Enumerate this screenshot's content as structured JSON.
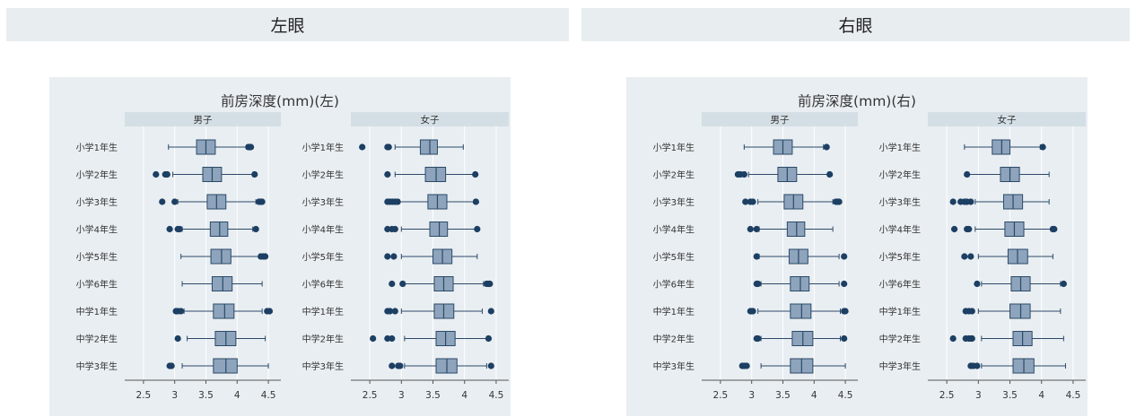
{
  "headers": {
    "left": "左眼",
    "right": "右眼"
  },
  "colors": {
    "plot_bg": "#e9eef2",
    "strip_bg": "#d4dfe5",
    "box_fill": "#8da4bc",
    "box_stroke": "#2c4a68",
    "outlier": "#1c3f63",
    "grid": "#ffffff",
    "text": "#333333"
  },
  "chart_data": [
    {
      "type": "box",
      "orientation": "horizontal",
      "title": "前房深度(mm)(左)",
      "categories": [
        "小学1年生",
        "小学2年生",
        "小学3年生",
        "小学4年生",
        "小学5年生",
        "小学6年生",
        "中学1年生",
        "中学2年生",
        "中学3年生"
      ],
      "xlim": [
        2.2,
        4.7
      ],
      "xticks": [
        2.5,
        3,
        3.5,
        4,
        4.5
      ],
      "xtick_labels": [
        "2.5",
        "3",
        "3.5",
        "4",
        "4.5"
      ],
      "grid": true,
      "panels": [
        {
          "name": "男子",
          "boxes": [
            {
              "whisker_low": 2.9,
              "q1": 3.35,
              "median": 3.5,
              "q3": 3.65,
              "whisker_high": 4.15,
              "outliers": [
                4.18,
                4.2,
                4.22
              ]
            },
            {
              "whisker_low": 2.97,
              "q1": 3.45,
              "median": 3.6,
              "q3": 3.75,
              "whisker_high": 4.25,
              "outliers": [
                2.7,
                2.85,
                2.88,
                4.28
              ]
            },
            {
              "whisker_low": 3.05,
              "q1": 3.52,
              "median": 3.67,
              "q3": 3.82,
              "whisker_high": 4.3,
              "outliers": [
                2.8,
                3.0,
                4.35,
                4.38,
                4.4
              ]
            },
            {
              "whisker_low": 3.12,
              "q1": 3.57,
              "median": 3.72,
              "q3": 3.85,
              "whisker_high": 4.25,
              "outliers": [
                2.92,
                3.05,
                3.08,
                4.3
              ]
            },
            {
              "whisker_low": 3.1,
              "q1": 3.58,
              "median": 3.75,
              "q3": 3.9,
              "whisker_high": 4.35,
              "outliers": [
                4.38,
                4.42,
                4.45
              ]
            },
            {
              "whisker_low": 3.12,
              "q1": 3.6,
              "median": 3.77,
              "q3": 3.92,
              "whisker_high": 4.4,
              "outliers": []
            },
            {
              "whisker_low": 3.15,
              "q1": 3.62,
              "median": 3.8,
              "q3": 3.95,
              "whisker_high": 4.4,
              "outliers": [
                3.02,
                3.05,
                3.1,
                4.48,
                4.52
              ]
            },
            {
              "whisker_low": 3.2,
              "q1": 3.65,
              "median": 3.82,
              "q3": 3.98,
              "whisker_high": 4.45,
              "outliers": [
                3.05
              ]
            },
            {
              "whisker_low": 3.12,
              "q1": 3.62,
              "median": 3.82,
              "q3": 4.0,
              "whisker_high": 4.5,
              "outliers": [
                2.92,
                2.95
              ]
            }
          ]
        },
        {
          "name": "女子",
          "boxes": [
            {
              "whisker_low": 2.9,
              "q1": 3.3,
              "median": 3.45,
              "q3": 3.57,
              "whisker_high": 3.98,
              "outliers": [
                2.38,
                2.78,
                2.8
              ]
            },
            {
              "whisker_low": 2.9,
              "q1": 3.38,
              "median": 3.55,
              "q3": 3.7,
              "whisker_high": 4.15,
              "outliers": [
                2.78,
                4.17
              ]
            },
            {
              "whisker_low": 2.97,
              "q1": 3.42,
              "median": 3.57,
              "q3": 3.72,
              "whisker_high": 4.15,
              "outliers": [
                2.78,
                2.82,
                2.86,
                2.9,
                2.94,
                4.18
              ]
            },
            {
              "whisker_low": 3.0,
              "q1": 3.45,
              "median": 3.6,
              "q3": 3.73,
              "whisker_high": 4.18,
              "outliers": [
                2.78,
                2.85,
                2.9,
                4.2
              ]
            },
            {
              "whisker_low": 3.0,
              "q1": 3.5,
              "median": 3.65,
              "q3": 3.8,
              "whisker_high": 4.2,
              "outliers": [
                2.78,
                2.88
              ]
            },
            {
              "whisker_low": 3.05,
              "q1": 3.52,
              "median": 3.67,
              "q3": 3.82,
              "whisker_high": 4.3,
              "outliers": [
                2.85,
                3.02,
                4.35,
                4.38,
                4.4
              ]
            },
            {
              "whisker_low": 3.0,
              "q1": 3.52,
              "median": 3.67,
              "q3": 3.83,
              "whisker_high": 4.28,
              "outliers": [
                2.78,
                2.82,
                2.9,
                4.42
              ]
            },
            {
              "whisker_low": 3.05,
              "q1": 3.55,
              "median": 3.7,
              "q3": 3.85,
              "whisker_high": 4.35,
              "outliers": [
                2.55,
                2.78,
                2.85,
                4.38
              ]
            },
            {
              "whisker_low": 3.05,
              "q1": 3.55,
              "median": 3.72,
              "q3": 3.88,
              "whisker_high": 4.35,
              "outliers": [
                2.85,
                2.95,
                2.98,
                4.42
              ]
            }
          ]
        }
      ]
    },
    {
      "type": "box",
      "orientation": "horizontal",
      "title": "前房深度(mm)(右)",
      "categories": [
        "小学1年生",
        "小学2年生",
        "小学3年生",
        "小学4年生",
        "小学5年生",
        "小学6年生",
        "中学1年生",
        "中学2年生",
        "中学3年生"
      ],
      "xlim": [
        2.2,
        4.7
      ],
      "xticks": [
        2.5,
        3,
        3.5,
        4,
        4.5
      ],
      "xtick_labels": [
        "2.5",
        "3",
        "3.5",
        "4",
        "4.5"
      ],
      "grid": true,
      "panels": [
        {
          "name": "男子",
          "boxes": [
            {
              "whisker_low": 2.88,
              "q1": 3.35,
              "median": 3.5,
              "q3": 3.65,
              "whisker_high": 4.15,
              "outliers": [
                4.2
              ]
            },
            {
              "whisker_low": 2.95,
              "q1": 3.42,
              "median": 3.57,
              "q3": 3.72,
              "whisker_high": 4.22,
              "outliers": [
                2.78,
                2.82,
                2.88,
                4.25
              ]
            },
            {
              "whisker_low": 3.1,
              "q1": 3.52,
              "median": 3.67,
              "q3": 3.82,
              "whisker_high": 4.3,
              "outliers": [
                2.9,
                2.98,
                3.02,
                4.35,
                4.38,
                4.4
              ]
            },
            {
              "whisker_low": 3.12,
              "q1": 3.57,
              "median": 3.72,
              "q3": 3.85,
              "whisker_high": 4.3,
              "outliers": [
                2.98,
                3.08
              ]
            },
            {
              "whisker_low": 3.12,
              "q1": 3.6,
              "median": 3.75,
              "q3": 3.9,
              "whisker_high": 4.4,
              "outliers": [
                3.08,
                4.48
              ]
            },
            {
              "whisker_low": 3.15,
              "q1": 3.62,
              "median": 3.78,
              "q3": 3.92,
              "whisker_high": 4.4,
              "outliers": [
                3.08,
                3.1,
                4.48
              ]
            },
            {
              "whisker_low": 3.1,
              "q1": 3.62,
              "median": 3.8,
              "q3": 3.95,
              "whisker_high": 4.42,
              "outliers": [
                2.98,
                3.0,
                3.02,
                4.48,
                4.5
              ]
            },
            {
              "whisker_low": 3.15,
              "q1": 3.65,
              "median": 3.82,
              "q3": 3.98,
              "whisker_high": 4.42,
              "outliers": [
                3.08,
                3.1,
                4.48
              ]
            },
            {
              "whisker_low": 3.15,
              "q1": 3.62,
              "median": 3.8,
              "q3": 3.98,
              "whisker_high": 4.5,
              "outliers": [
                2.85,
                2.88,
                2.92
              ]
            }
          ]
        },
        {
          "name": "女子",
          "boxes": [
            {
              "whisker_low": 2.78,
              "q1": 3.22,
              "median": 3.37,
              "q3": 3.5,
              "whisker_high": 3.98,
              "outliers": [
                4.02
              ]
            },
            {
              "whisker_low": 2.85,
              "q1": 3.35,
              "median": 3.5,
              "q3": 3.65,
              "whisker_high": 4.12,
              "outliers": [
                2.82
              ]
            },
            {
              "whisker_low": 2.95,
              "q1": 3.4,
              "median": 3.55,
              "q3": 3.7,
              "whisker_high": 4.12,
              "outliers": [
                2.6,
                2.72,
                2.78,
                2.82,
                2.88
              ]
            },
            {
              "whisker_low": 2.95,
              "q1": 3.42,
              "median": 3.57,
              "q3": 3.72,
              "whisker_high": 4.15,
              "outliers": [
                2.62,
                2.82,
                2.85,
                4.18,
                4.2
              ]
            },
            {
              "whisker_low": 3.0,
              "q1": 3.47,
              "median": 3.62,
              "q3": 3.78,
              "whisker_high": 4.18,
              "outliers": [
                2.78,
                2.88
              ]
            },
            {
              "whisker_low": 3.05,
              "q1": 3.52,
              "median": 3.67,
              "q3": 3.82,
              "whisker_high": 4.3,
              "outliers": [
                2.98,
                4.35
              ]
            },
            {
              "whisker_low": 3.0,
              "q1": 3.5,
              "median": 3.67,
              "q3": 3.82,
              "whisker_high": 4.3,
              "outliers": [
                2.8,
                2.85,
                2.9
              ]
            },
            {
              "whisker_low": 3.05,
              "q1": 3.55,
              "median": 3.7,
              "q3": 3.85,
              "whisker_high": 4.35,
              "outliers": [
                2.6,
                2.8,
                2.85,
                2.88,
                2.9
              ]
            },
            {
              "whisker_low": 3.05,
              "q1": 3.55,
              "median": 3.72,
              "q3": 3.88,
              "whisker_high": 4.38,
              "outliers": [
                2.88,
                2.92,
                2.98
              ]
            }
          ]
        }
      ]
    }
  ]
}
